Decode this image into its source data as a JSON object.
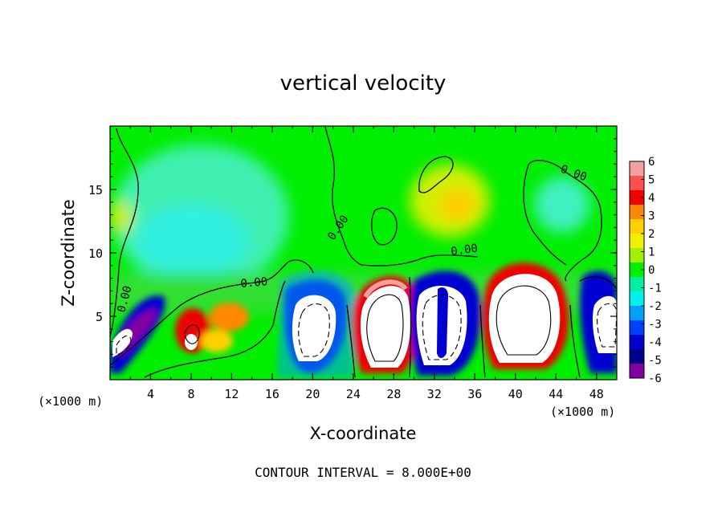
{
  "chart_data": {
    "type": "heatmap",
    "title": "vertical velocity",
    "xlabel": "X-coordinate",
    "ylabel": "Z-coordinate",
    "x_unit": "(×1000 m)",
    "x_unit_right": "(×1000 m)",
    "xlim": [
      0,
      50
    ],
    "ylim": [
      0,
      20
    ],
    "x_ticks": [
      "4",
      "8",
      "12",
      "16",
      "20",
      "24",
      "28",
      "32",
      "36",
      "40",
      "44",
      "48"
    ],
    "y_ticks": [
      "5",
      "10",
      "15"
    ],
    "colorbar_ticks": [
      "6",
      "5",
      "4",
      "3",
      "2",
      "1",
      "0",
      "-1",
      "-2",
      "-3",
      "-4",
      "-5",
      "-6"
    ],
    "colorbar_range": [
      -6,
      6
    ],
    "colorbar_colors": [
      "#f5a0a0",
      "#ff5050",
      "#f00000",
      "#ff8800",
      "#ffd000",
      "#f0f000",
      "#a0f000",
      "#00f000",
      "#00f0a0",
      "#00f0f0",
      "#00a0ff",
      "#0040ff",
      "#0000d0",
      "#000090",
      "#8000a0"
    ],
    "contour_label": "0.00",
    "contour_interval_text": "CONTOUR INTERVAL = 8.000E+00",
    "cells": [
      {
        "x": 27.5,
        "z": 4.5,
        "w": 6
      },
      {
        "x": 39.5,
        "z": 5.0,
        "w": 6
      },
      {
        "x": 21.0,
        "z": 4.0,
        "w": -6
      },
      {
        "x": 33.0,
        "z": 4.0,
        "w": -6
      },
      {
        "x": 49.0,
        "z": 4.5,
        "w": -6
      },
      {
        "x": 8.0,
        "z": 3.0,
        "w": 5
      },
      {
        "x": 2.0,
        "z": 3.0,
        "w": -5
      }
    ]
  }
}
